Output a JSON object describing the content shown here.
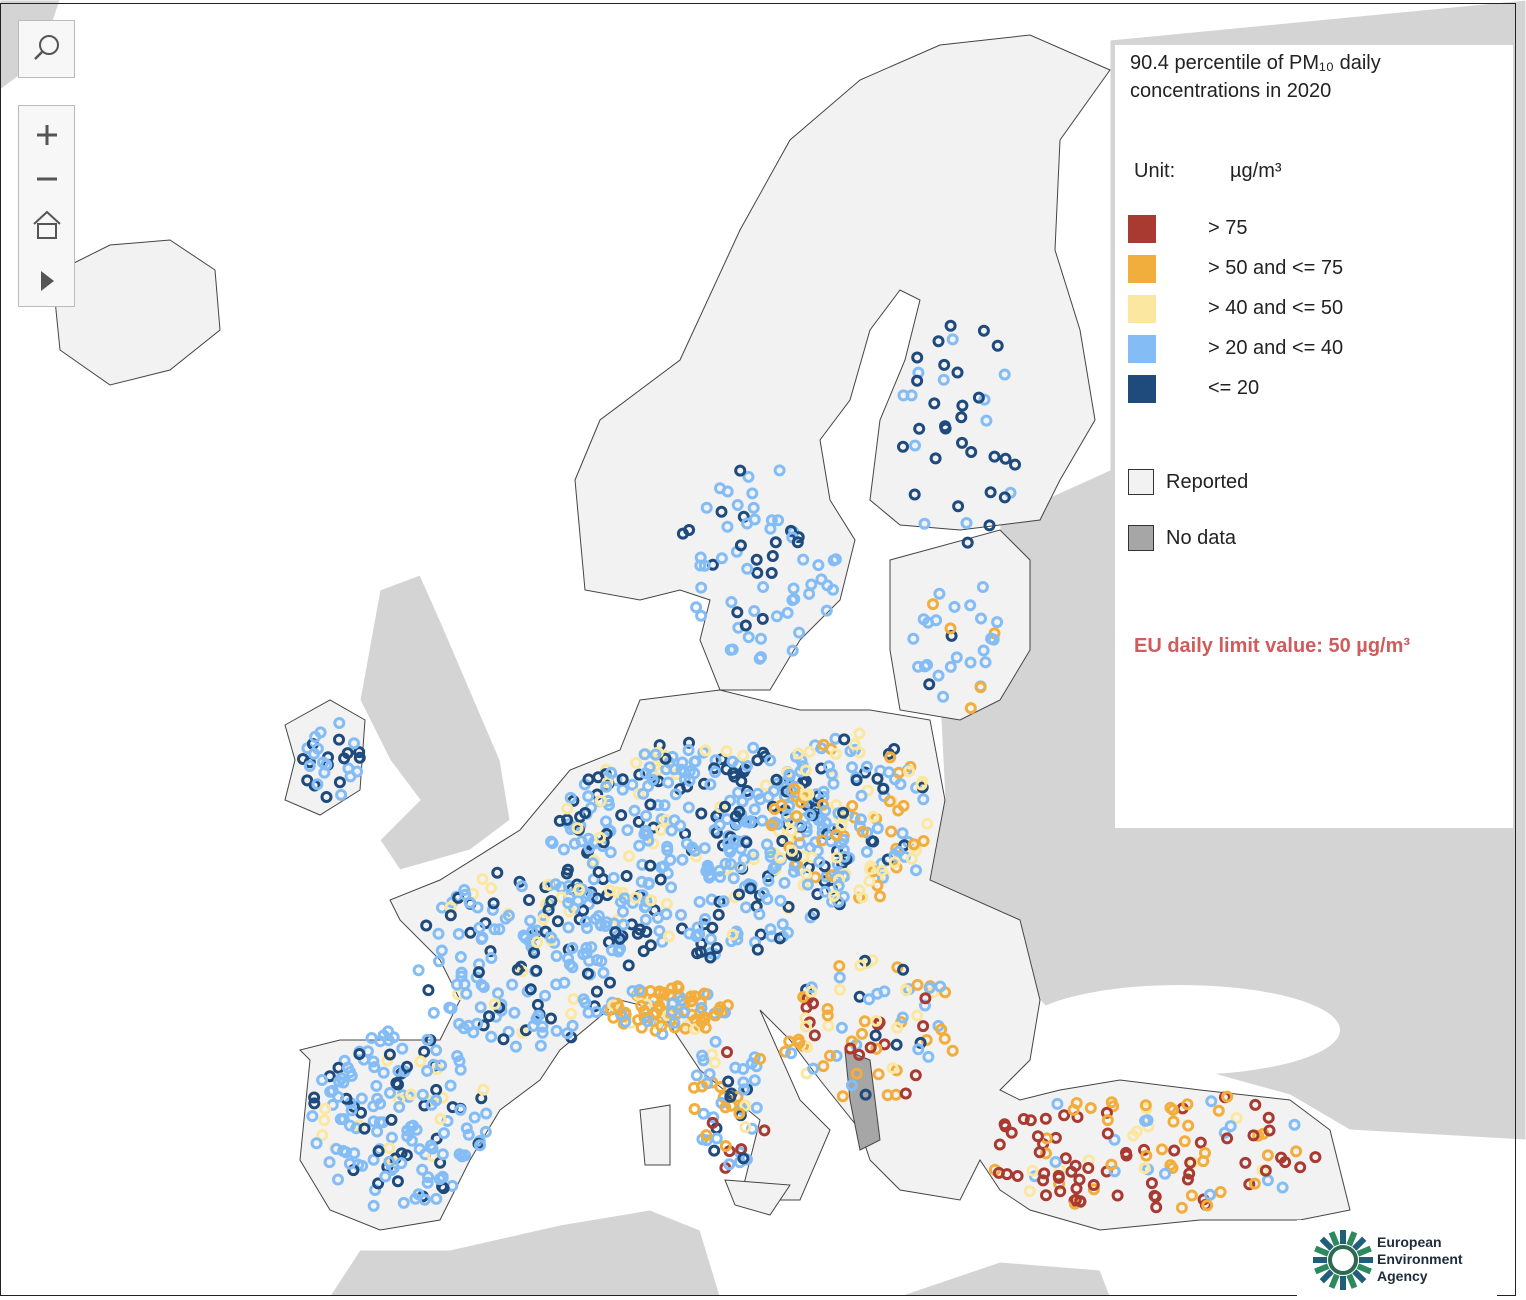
{
  "legend": {
    "title": "90.4 percentile of PM₁₀ daily concentrations in 2020",
    "unit_label": "Unit:",
    "unit": "µg/m³",
    "classes": [
      {
        "label": "> 75",
        "color": "#a93a32"
      },
      {
        "label": "> 50 and <= 75",
        "color": "#f2ae3d"
      },
      {
        "label": "> 40 and <= 50",
        "color": "#fbe7a0"
      },
      {
        "label": "> 20 and <= 40",
        "color": "#84bdf5"
      },
      {
        "label": "<= 20",
        "color": "#1f4a7c"
      }
    ],
    "reported": {
      "label": "Reported",
      "color": "#f2f2f2"
    },
    "no_data": {
      "label": "No data",
      "color": "#a6a6a6"
    },
    "note": "EU daily limit value: 50 µg/m³"
  },
  "logo": {
    "text": "European Environment Agency"
  }
}
